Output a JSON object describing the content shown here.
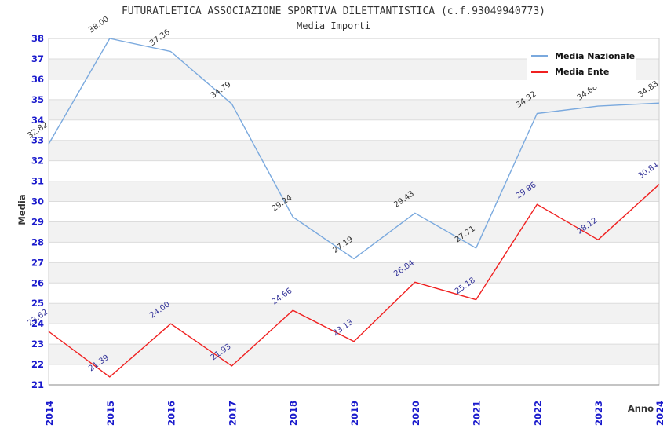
{
  "chart_data": {
    "type": "line",
    "title": "FUTURATLETICA ASSOCIAZIONE SPORTIVA DILETTANTISTICA (c.f.93049940773)",
    "subtitle": "Media Importi",
    "xlabel": "Anno",
    "ylabel": "Media",
    "categories": [
      "2014",
      "2015",
      "2016",
      "2017",
      "2018",
      "2019",
      "2020",
      "2021",
      "2022",
      "2023",
      "2024"
    ],
    "series": [
      {
        "name": "Media Nazionale",
        "color": "#7aa9de",
        "label_color": "#333333",
        "values": [
          32.82,
          38.0,
          37.36,
          34.79,
          29.24,
          27.19,
          29.43,
          27.71,
          34.32,
          34.68,
          34.83
        ]
      },
      {
        "name": "Media Ente",
        "color": "#f02020",
        "label_color": "#333399",
        "values": [
          23.62,
          21.39,
          24.0,
          21.93,
          24.66,
          23.13,
          26.04,
          25.18,
          29.86,
          28.12,
          30.84
        ]
      }
    ],
    "ylim": [
      21,
      38
    ],
    "ytick_step": 1,
    "grid": true,
    "legend_position": "top-right",
    "colors": {
      "tick_label": "#1a1acc",
      "axis_title": "#333333",
      "grid_line": "#dcdcdc",
      "band": "#f2f2f2",
      "plot_border": "#cccccc",
      "bottom_axis": "#888888"
    }
  }
}
